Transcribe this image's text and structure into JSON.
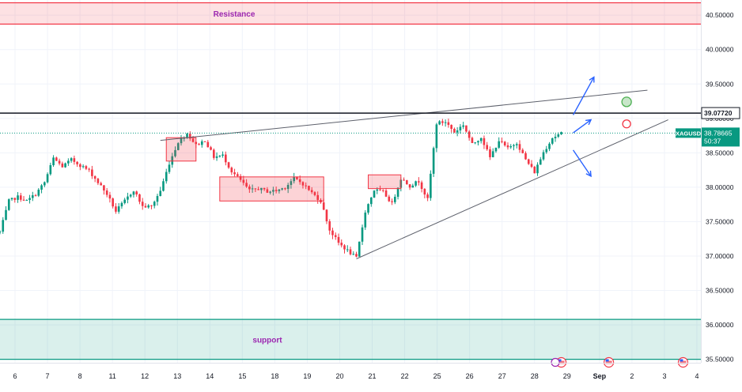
{
  "chart_data": {
    "type": "candlestick",
    "symbol": "XAGUSD",
    "current_price_label": "38.78665",
    "countdown": "50:37",
    "level_label": "39.07720",
    "level_value": 39.0772,
    "current_value": 38.78665,
    "ylim": [
      35.45,
      40.72
    ],
    "y_ticks": [
      "40.50000",
      "40.00000",
      "39.50000",
      "39.00000",
      "38.50000",
      "38.00000",
      "37.50000",
      "37.00000",
      "36.50000",
      "36.00000",
      "35.50000"
    ],
    "x_ticks": [
      "6",
      "7",
      "8",
      "11",
      "12",
      "13",
      "14",
      "15",
      "18",
      "19",
      "20",
      "21",
      "22",
      "25",
      "26",
      "27",
      "28",
      "29",
      "Sep",
      "2",
      "3",
      "4"
    ],
    "zones": [
      {
        "label": "Resistance",
        "from": 40.37,
        "to": 40.68,
        "color": "#f23645"
      },
      {
        "label": "support",
        "from": 35.5,
        "to": 36.08,
        "color": "#089981"
      }
    ],
    "colors": {
      "up": "#089981",
      "down": "#f23645",
      "grid": "#f0f3fa",
      "arrow": "#2962ff",
      "label_purple": "#9c27b0"
    },
    "path_points": [
      [
        0,
        37.35
      ],
      [
        3,
        37.8
      ],
      [
        6,
        37.86
      ],
      [
        9,
        37.8
      ],
      [
        12,
        37.9
      ],
      [
        15,
        38.07
      ],
      [
        18,
        38.42
      ],
      [
        21,
        38.3
      ],
      [
        24,
        38.4
      ],
      [
        27,
        38.32
      ],
      [
        30,
        38.24
      ],
      [
        33,
        38.07
      ],
      [
        36,
        37.9
      ],
      [
        39,
        37.65
      ],
      [
        42,
        37.8
      ],
      [
        45,
        37.96
      ],
      [
        48,
        37.72
      ],
      [
        51,
        37.72
      ],
      [
        54,
        37.95
      ],
      [
        57,
        38.35
      ],
      [
        60,
        38.66
      ],
      [
        63,
        38.78
      ],
      [
        66,
        38.61
      ],
      [
        69,
        38.68
      ],
      [
        72,
        38.44
      ],
      [
        75,
        38.46
      ],
      [
        78,
        38.23
      ],
      [
        81,
        38.1
      ],
      [
        84,
        37.95
      ],
      [
        87,
        37.98
      ],
      [
        90,
        37.94
      ],
      [
        93,
        37.95
      ],
      [
        96,
        38.0
      ],
      [
        99,
        38.13
      ],
      [
        102,
        38.05
      ],
      [
        105,
        37.92
      ],
      [
        108,
        37.8
      ],
      [
        111,
        37.38
      ],
      [
        114,
        37.19
      ],
      [
        117,
        37.08
      ],
      [
        120,
        36.97
      ],
      [
        123,
        37.65
      ],
      [
        126,
        37.96
      ],
      [
        129,
        37.93
      ],
      [
        132,
        37.76
      ],
      [
        135,
        38.13
      ],
      [
        138,
        38.02
      ],
      [
        141,
        38.09
      ],
      [
        144,
        37.82
      ],
      [
        147,
        38.93
      ],
      [
        150,
        38.95
      ],
      [
        153,
        38.8
      ],
      [
        156,
        38.91
      ],
      [
        159,
        38.62
      ],
      [
        162,
        38.73
      ],
      [
        165,
        38.43
      ],
      [
        168,
        38.68
      ],
      [
        171,
        38.56
      ],
      [
        174,
        38.65
      ],
      [
        177,
        38.4
      ],
      [
        180,
        38.22
      ],
      [
        183,
        38.51
      ],
      [
        186,
        38.72
      ],
      [
        189,
        38.78
      ]
    ],
    "annotation_boxes": [
      {
        "t0": 56,
        "t1": 66,
        "low": 38.38,
        "high": 38.72
      },
      {
        "t0": 74,
        "t1": 109,
        "low": 37.8,
        "high": 38.15
      },
      {
        "t0": 124,
        "t1": 135,
        "low": 37.98,
        "high": 38.18
      }
    ],
    "trendlines": [
      {
        "t0": 54,
        "v0": 38.68,
        "t1": 218,
        "v1": 39.41,
        "color": "#5d606b"
      },
      {
        "t0": 120,
        "v0": 36.96,
        "t1": 225,
        "v1": 38.98,
        "color": "#5d606b"
      }
    ],
    "arrows": [
      {
        "t0": 193,
        "v0": 39.05,
        "t1": 200,
        "v1": 39.6
      },
      {
        "t0": 193,
        "v0": 38.79,
        "t1": 199,
        "v1": 38.98
      },
      {
        "t0": 193,
        "v0": 38.54,
        "t1": 199,
        "v1": 38.16
      }
    ],
    "markers": [
      {
        "t": 211,
        "v": 39.24,
        "color": "#4caf50",
        "fill": "#c8e6c9"
      },
      {
        "t": 211,
        "v": 38.92,
        "color": "#f23645",
        "fill": "#ffffff"
      }
    ],
    "event_markers": [
      {
        "t": 189,
        "kind": "flag-us"
      },
      {
        "t": 205,
        "kind": "flag-us"
      },
      {
        "t": 230,
        "kind": "flag-us"
      }
    ]
  }
}
